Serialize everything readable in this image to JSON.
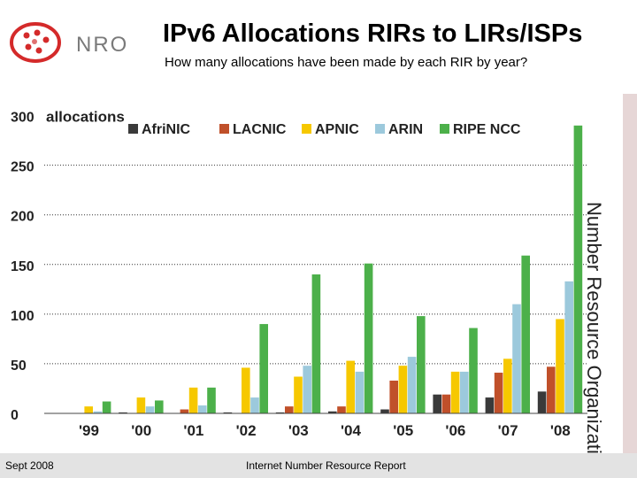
{
  "header": {
    "title": "IPv6 Allocations RIRs to LIRs/ISPs",
    "subtitle": "How many allocations have been made by each RIR by year?",
    "logo_text": "NRO"
  },
  "sidebar": {
    "org_name": "Number Resource Organization"
  },
  "footer": {
    "date": "Sept 2008",
    "report": "Internet Number Resource Report"
  },
  "colors": {
    "AfriNIC": "#3a3a3a",
    "LACNIC": "#c0502a",
    "APNIC": "#f6c800",
    "ARIN": "#9cc9dc",
    "RIPE NCC": "#4cb04a",
    "logo_red": "#d42a2a"
  },
  "chart_data": {
    "type": "bar",
    "title": "",
    "ylabel": "allocations",
    "xlabel": "",
    "ylim": [
      0,
      300
    ],
    "yticks": [
      "0",
      "50",
      "100",
      "150",
      "200",
      "250",
      "300"
    ],
    "categories": [
      "'99",
      "'00",
      "'01",
      "'02",
      "'03",
      "'04",
      "'05",
      "'06",
      "'07",
      "'08"
    ],
    "series": [
      {
        "name": "AfriNIC",
        "values": [
          0,
          1,
          0,
          1,
          1,
          2,
          4,
          19,
          16,
          22
        ]
      },
      {
        "name": "LACNIC",
        "values": [
          0,
          0,
          4,
          0,
          7,
          7,
          33,
          19,
          41,
          47
        ]
      },
      {
        "name": "APNIC",
        "values": [
          7,
          16,
          26,
          46,
          37,
          53,
          48,
          42,
          55,
          95
        ]
      },
      {
        "name": "ARIN",
        "values": [
          2,
          7,
          8,
          16,
          48,
          42,
          57,
          42,
          110,
          133
        ]
      },
      {
        "name": "RIPE NCC",
        "values": [
          12,
          13,
          26,
          90,
          140,
          151,
          98,
          86,
          159,
          290
        ]
      }
    ]
  }
}
